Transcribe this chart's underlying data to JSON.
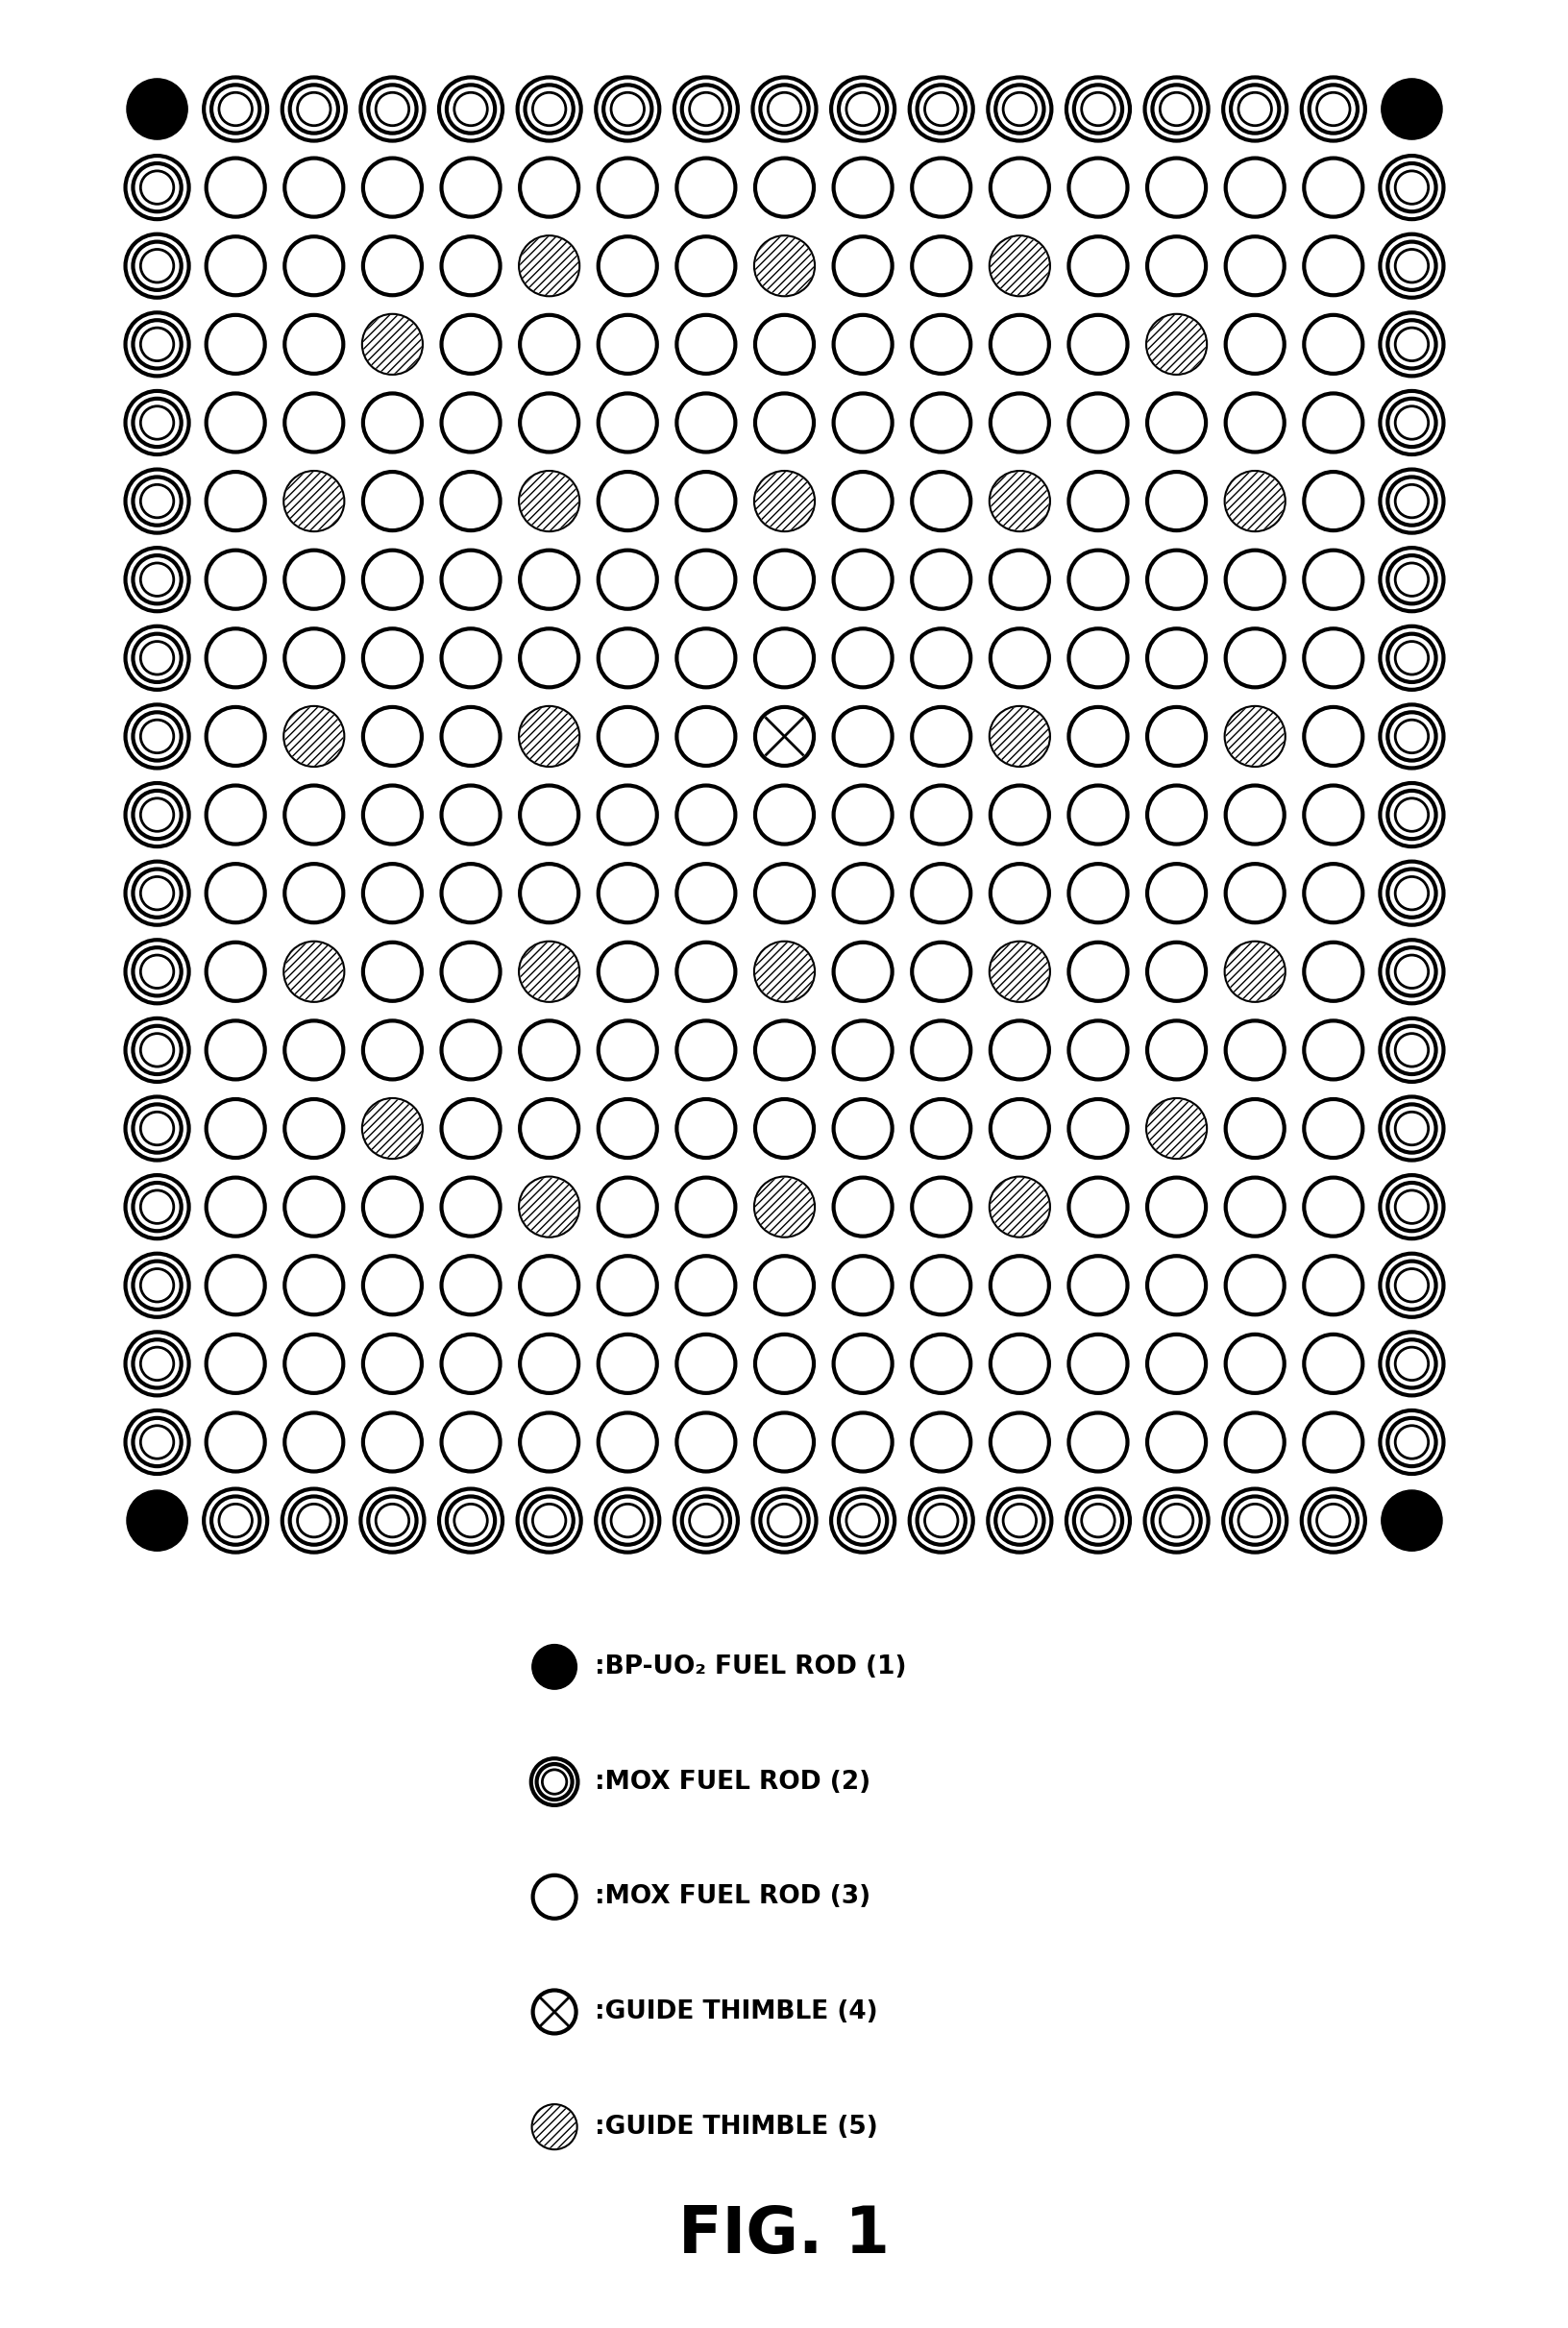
{
  "nrows": 19,
  "ncols": 17,
  "fig_width": 16.33,
  "fig_height": 24.23,
  "background_color": "#ffffff",
  "title": "FIG. 1",
  "legend_items": [
    {
      "type": "BP",
      "label": "BP-UO₂ FUEL ROD (1)"
    },
    {
      "type": "MOX2",
      "label": "MOX FUEL ROD (2)"
    },
    {
      "type": "MOX3",
      "label": "MOX FUEL ROD (3)"
    },
    {
      "type": "GT4",
      "label": "GUIDE THIMBLE (4)"
    },
    {
      "type": "GT5",
      "label": "GUIDE THIMBLE (5)"
    }
  ],
  "grid_exact": [
    [
      1,
      2,
      2,
      2,
      2,
      2,
      2,
      2,
      2,
      2,
      2,
      2,
      2,
      2,
      2,
      2,
      1
    ],
    [
      2,
      3,
      3,
      3,
      3,
      3,
      3,
      3,
      3,
      3,
      3,
      3,
      3,
      3,
      3,
      3,
      2
    ],
    [
      2,
      3,
      3,
      3,
      3,
      5,
      3,
      3,
      5,
      3,
      3,
      5,
      3,
      3,
      3,
      3,
      2
    ],
    [
      2,
      3,
      3,
      5,
      3,
      3,
      3,
      3,
      3,
      3,
      3,
      3,
      3,
      5,
      3,
      3,
      2
    ],
    [
      2,
      3,
      3,
      3,
      3,
      3,
      3,
      3,
      3,
      3,
      3,
      3,
      3,
      3,
      3,
      3,
      2
    ],
    [
      2,
      3,
      5,
      3,
      3,
      5,
      3,
      3,
      5,
      3,
      3,
      5,
      3,
      3,
      5,
      3,
      2
    ],
    [
      2,
      3,
      3,
      3,
      3,
      3,
      3,
      3,
      3,
      3,
      3,
      3,
      3,
      3,
      3,
      3,
      2
    ],
    [
      2,
      3,
      3,
      3,
      3,
      3,
      3,
      3,
      3,
      3,
      3,
      3,
      3,
      3,
      3,
      3,
      2
    ],
    [
      2,
      3,
      5,
      3,
      3,
      5,
      3,
      3,
      4,
      3,
      3,
      5,
      3,
      3,
      5,
      3,
      2
    ],
    [
      2,
      3,
      3,
      3,
      3,
      3,
      3,
      3,
      3,
      3,
      3,
      3,
      3,
      3,
      3,
      3,
      2
    ],
    [
      2,
      3,
      3,
      3,
      3,
      3,
      3,
      3,
      3,
      3,
      3,
      3,
      3,
      3,
      3,
      3,
      2
    ],
    [
      2,
      3,
      5,
      3,
      3,
      5,
      3,
      3,
      5,
      3,
      3,
      5,
      3,
      3,
      5,
      3,
      2
    ],
    [
      2,
      3,
      3,
      3,
      3,
      3,
      3,
      3,
      3,
      3,
      3,
      3,
      3,
      3,
      3,
      3,
      2
    ],
    [
      2,
      3,
      3,
      5,
      3,
      3,
      3,
      3,
      3,
      3,
      3,
      3,
      3,
      5,
      3,
      3,
      2
    ],
    [
      2,
      3,
      3,
      3,
      3,
      5,
      3,
      3,
      5,
      3,
      3,
      5,
      3,
      3,
      3,
      3,
      2
    ],
    [
      2,
      3,
      3,
      3,
      3,
      3,
      3,
      3,
      3,
      3,
      3,
      3,
      3,
      3,
      3,
      3,
      2
    ],
    [
      2,
      3,
      3,
      3,
      3,
      3,
      3,
      3,
      3,
      3,
      3,
      3,
      3,
      3,
      3,
      3,
      2
    ],
    [
      2,
      3,
      3,
      3,
      3,
      3,
      3,
      3,
      3,
      3,
      3,
      3,
      3,
      3,
      3,
      3,
      2
    ],
    [
      1,
      2,
      2,
      2,
      2,
      2,
      2,
      2,
      2,
      2,
      2,
      2,
      2,
      2,
      2,
      2,
      1
    ]
  ]
}
